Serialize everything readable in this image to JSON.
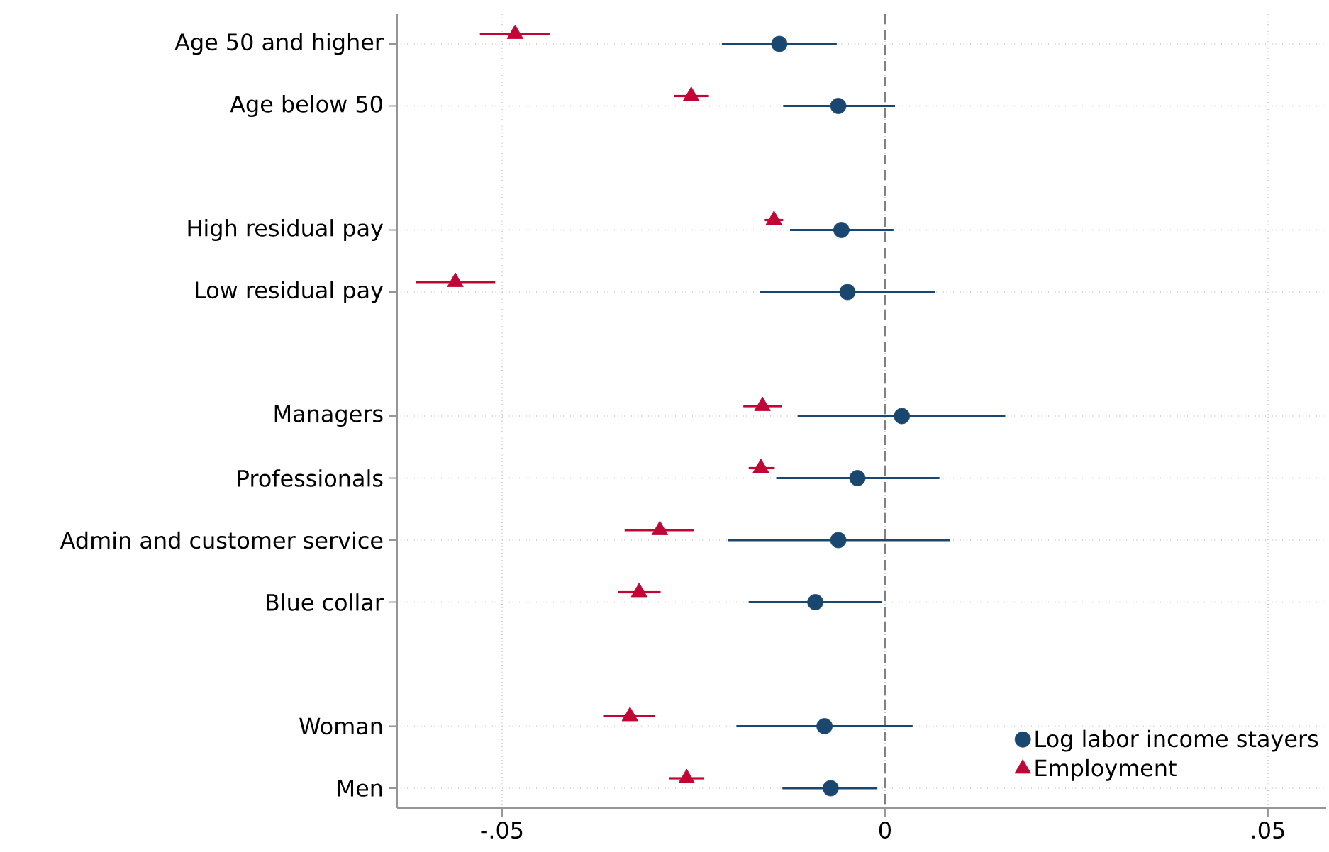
{
  "chart_data": {
    "type": "scatter",
    "orientation": "horizontal",
    "categories": [
      "Age 50 and higher",
      "Age below 50",
      null,
      "High residual pay",
      "Low residual pay",
      null,
      "Managers",
      "Professionals",
      "Admin and customer service",
      "Blue collar",
      null,
      "Woman",
      "Men"
    ],
    "series": [
      {
        "name": "Log labor income stayers",
        "color": "#1a476f",
        "marker": "circle",
        "values": [
          -0.0138,
          -0.0061,
          null,
          -0.0057,
          -0.0049,
          null,
          0.0022,
          -0.0036,
          -0.0061,
          -0.0091,
          null,
          -0.0079,
          -0.0071
        ],
        "errors": [
          [
            -0.0213,
            -0.0063
          ],
          [
            -0.0133,
            0.0013
          ],
          null,
          [
            -0.0124,
            0.0011
          ],
          [
            -0.0163,
            0.0065
          ],
          null,
          [
            -0.0114,
            0.0157
          ],
          [
            -0.0142,
            0.0071
          ],
          [
            -0.0205,
            0.0085
          ],
          [
            -0.0178,
            -0.0004
          ],
          null,
          [
            -0.0194,
            0.0036
          ],
          [
            -0.0134,
            -0.001
          ]
        ]
      },
      {
        "name": "Employment",
        "color": "#c10534",
        "marker": "triangle",
        "values": [
          -0.0483,
          -0.0253,
          null,
          -0.0145,
          -0.0561,
          null,
          -0.016,
          -0.0162,
          -0.0294,
          -0.0321,
          null,
          -0.0333,
          -0.0259
        ],
        "errors": [
          [
            -0.0529,
            -0.0438
          ],
          [
            -0.0275,
            -0.023
          ],
          null,
          [
            -0.0157,
            -0.0133
          ],
          [
            -0.0612,
            -0.0509
          ],
          null,
          [
            -0.0185,
            -0.0135
          ],
          [
            -0.0178,
            -0.0144
          ],
          [
            -0.034,
            -0.025
          ],
          [
            -0.0349,
            -0.0293
          ],
          null,
          [
            -0.0368,
            -0.03
          ],
          [
            -0.0282,
            -0.0236
          ]
        ]
      }
    ],
    "xlim": [
      -0.0637,
      0.0576
    ],
    "xticks": [
      {
        "value": -0.05,
        "label": "-.05"
      },
      0,
      {
        "value": 0.05,
        "label": ".05"
      }
    ],
    "ref_lines": [
      {
        "axis": "x",
        "value": 0,
        "color": "#808080",
        "line_style": "dashed"
      }
    ],
    "grid": true,
    "legend": "bottom right"
  }
}
